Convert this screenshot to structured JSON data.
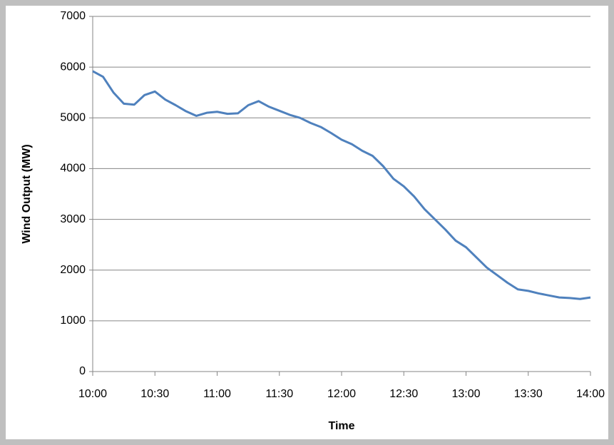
{
  "chart_data": {
    "type": "line",
    "x_label": "Time",
    "y_label": "Wind Output (MW)",
    "x": [
      600,
      605,
      610,
      615,
      620,
      625,
      630,
      635,
      640,
      645,
      650,
      655,
      660,
      665,
      670,
      675,
      680,
      685,
      690,
      695,
      700,
      705,
      710,
      715,
      720,
      725,
      730,
      735,
      740,
      745,
      750,
      755,
      760,
      765,
      770,
      775,
      780,
      785,
      790,
      795,
      800,
      805,
      810,
      815,
      820,
      825,
      830,
      835,
      840
    ],
    "series": [
      {
        "name": "Wind Output",
        "color": "#4f81bd",
        "values": [
          5920,
          5810,
          5500,
          5280,
          5260,
          5450,
          5520,
          5360,
          5250,
          5130,
          5040,
          5100,
          5120,
          5080,
          5090,
          5250,
          5330,
          5220,
          5140,
          5060,
          5000,
          4900,
          4820,
          4700,
          4570,
          4480,
          4350,
          4250,
          4050,
          3800,
          3650,
          3450,
          3200,
          3000,
          2800,
          2580,
          2450,
          2250,
          2050,
          1900,
          1750,
          1620,
          1590,
          1540,
          1500,
          1460,
          1450,
          1430,
          1460
        ]
      }
    ],
    "xlim": [
      600,
      840
    ],
    "xticks": [
      {
        "value": 600,
        "label": "10:00"
      },
      {
        "value": 630,
        "label": "10:30"
      },
      {
        "value": 660,
        "label": "11:00"
      },
      {
        "value": 690,
        "label": "11:30"
      },
      {
        "value": 720,
        "label": "12:00"
      },
      {
        "value": 750,
        "label": "12:30"
      },
      {
        "value": 780,
        "label": "13:00"
      },
      {
        "value": 810,
        "label": "13:30"
      },
      {
        "value": 840,
        "label": "14:00"
      }
    ],
    "ylim": [
      0,
      7000
    ],
    "yticks": [
      0,
      1000,
      2000,
      3000,
      4000,
      5000,
      6000,
      7000
    ],
    "grid": true
  }
}
